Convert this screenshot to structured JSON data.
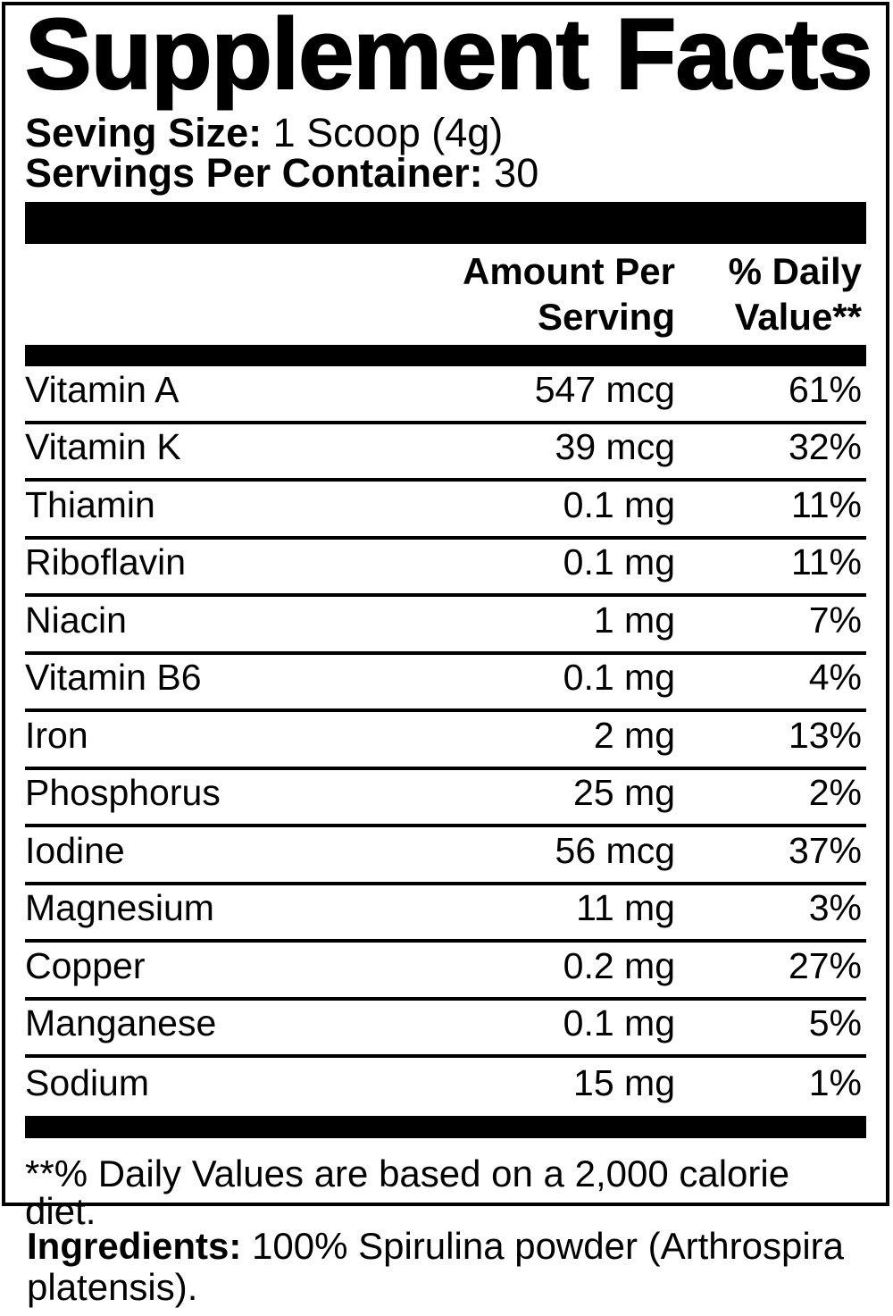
{
  "label": {
    "title": "Supplement Facts",
    "serving": {
      "size_label": "Seving Size:",
      "size_value": "1 Scoop (4g)",
      "per_container_label": "Servings Per Container:",
      "per_container_value": "30"
    },
    "header": {
      "amount_line1": "Amount Per",
      "amount_line2": "Serving",
      "dv_line1": "% Daily",
      "dv_line2": "Value**"
    },
    "nutrients": [
      {
        "name": "Vitamin A",
        "amount": "547 mcg",
        "dv": "61%"
      },
      {
        "name": "Vitamin K",
        "amount": "39 mcg",
        "dv": "32%"
      },
      {
        "name": "Thiamin",
        "amount": "0.1 mg",
        "dv": "11%"
      },
      {
        "name": "Riboflavin",
        "amount": "0.1 mg",
        "dv": "11%"
      },
      {
        "name": "Niacin",
        "amount": "1 mg",
        "dv": "7%"
      },
      {
        "name": "Vitamin B6",
        "amount": "0.1 mg",
        "dv": "4%"
      },
      {
        "name": "Iron",
        "amount": "2 mg",
        "dv": "13%"
      },
      {
        "name": "Phosphorus",
        "amount": "25 mg",
        "dv": "2%"
      },
      {
        "name": "Iodine",
        "amount": "56 mcg",
        "dv": "37%"
      },
      {
        "name": "Magnesium",
        "amount": "11 mg",
        "dv": "3%"
      },
      {
        "name": "Copper",
        "amount": "0.2 mg",
        "dv": "27%"
      },
      {
        "name": "Manganese",
        "amount": "0.1 mg",
        "dv": "5%"
      },
      {
        "name": "Sodium",
        "amount": "15 mg",
        "dv": "1%"
      }
    ],
    "footnote": "**% Daily Values are based on a 2,000 calorie diet.",
    "ingredients_label": "Ingredients:",
    "ingredients_value": "100% Spirulina powder (Arthrospira platensis).",
    "colors": {
      "text": "#000000",
      "background": "#ffffff",
      "bar": "#000000"
    }
  }
}
